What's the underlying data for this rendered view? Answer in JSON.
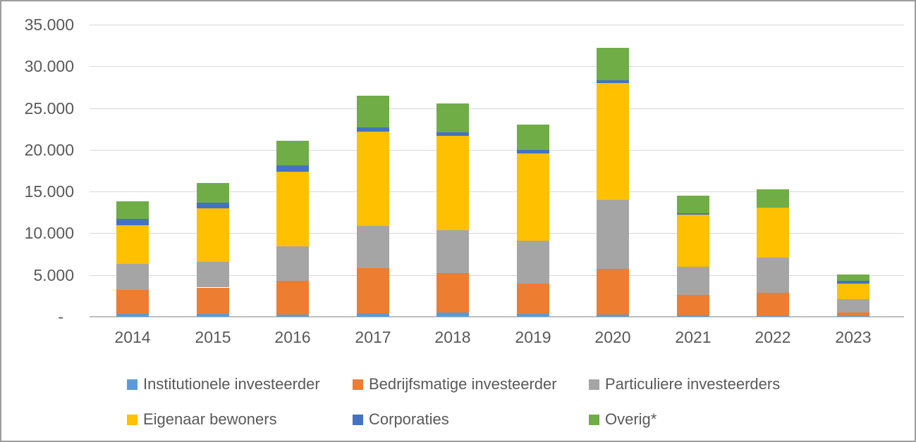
{
  "chart_data": {
    "type": "bar",
    "stacked": true,
    "title": "",
    "xlabel": "",
    "ylabel": "",
    "categories": [
      "2014",
      "2015",
      "2016",
      "2017",
      "2018",
      "2019",
      "2020",
      "2021",
      "2022",
      "2023"
    ],
    "series": [
      {
        "name": "Institutionele investeerder",
        "color": "#5B9BD5",
        "values": [
          300,
          300,
          250,
          450,
          500,
          300,
          250,
          150,
          100,
          100
        ]
      },
      {
        "name": "Bedrijfsmatige investeerder",
        "color": "#ED7D31",
        "values": [
          2900,
          3200,
          4050,
          5350,
          4700,
          3700,
          5450,
          2450,
          2800,
          400
        ]
      },
      {
        "name": "Particuliere investeerders",
        "color": "#A5A5A5",
        "values": [
          3100,
          3100,
          4100,
          5100,
          5200,
          5100,
          8300,
          3400,
          4200,
          1600
        ]
      },
      {
        "name": "Eigenaar bewoners",
        "color": "#FFC000",
        "values": [
          4700,
          6400,
          9000,
          11300,
          11300,
          10500,
          14000,
          6200,
          6000,
          1900
        ]
      },
      {
        "name": "Corporaties",
        "color": "#4472C4",
        "values": [
          700,
          700,
          700,
          450,
          400,
          400,
          300,
          200,
          0,
          300
        ]
      },
      {
        "name": "Overig*",
        "color": "#70AD47",
        "values": [
          2100,
          2300,
          3000,
          3800,
          3500,
          3000,
          3900,
          2100,
          2200,
          800
        ]
      }
    ],
    "y_axis": {
      "min": 0,
      "max": 35000,
      "step": 5000,
      "tick_labels": [
        "-",
        "5.000",
        "10.000",
        "15.000",
        "20.000",
        "25.000",
        "30.000",
        "35.000"
      ]
    },
    "grid": true,
    "legend_position": "bottom",
    "legend_rows": [
      [
        "Institutionele investeerder",
        "Bedrijfsmatige investeerder",
        "Particuliere investeerders"
      ],
      [
        "Eigenaar bewoners",
        "Corporaties",
        "Overig*"
      ]
    ]
  },
  "colors": {
    "background": "#FFFFFF",
    "border": "#9D9D9D",
    "gridline": "#D9D9D9",
    "axis_line": "#BFBFBF",
    "axis_text": "#595959",
    "legend_text": "#595959"
  }
}
